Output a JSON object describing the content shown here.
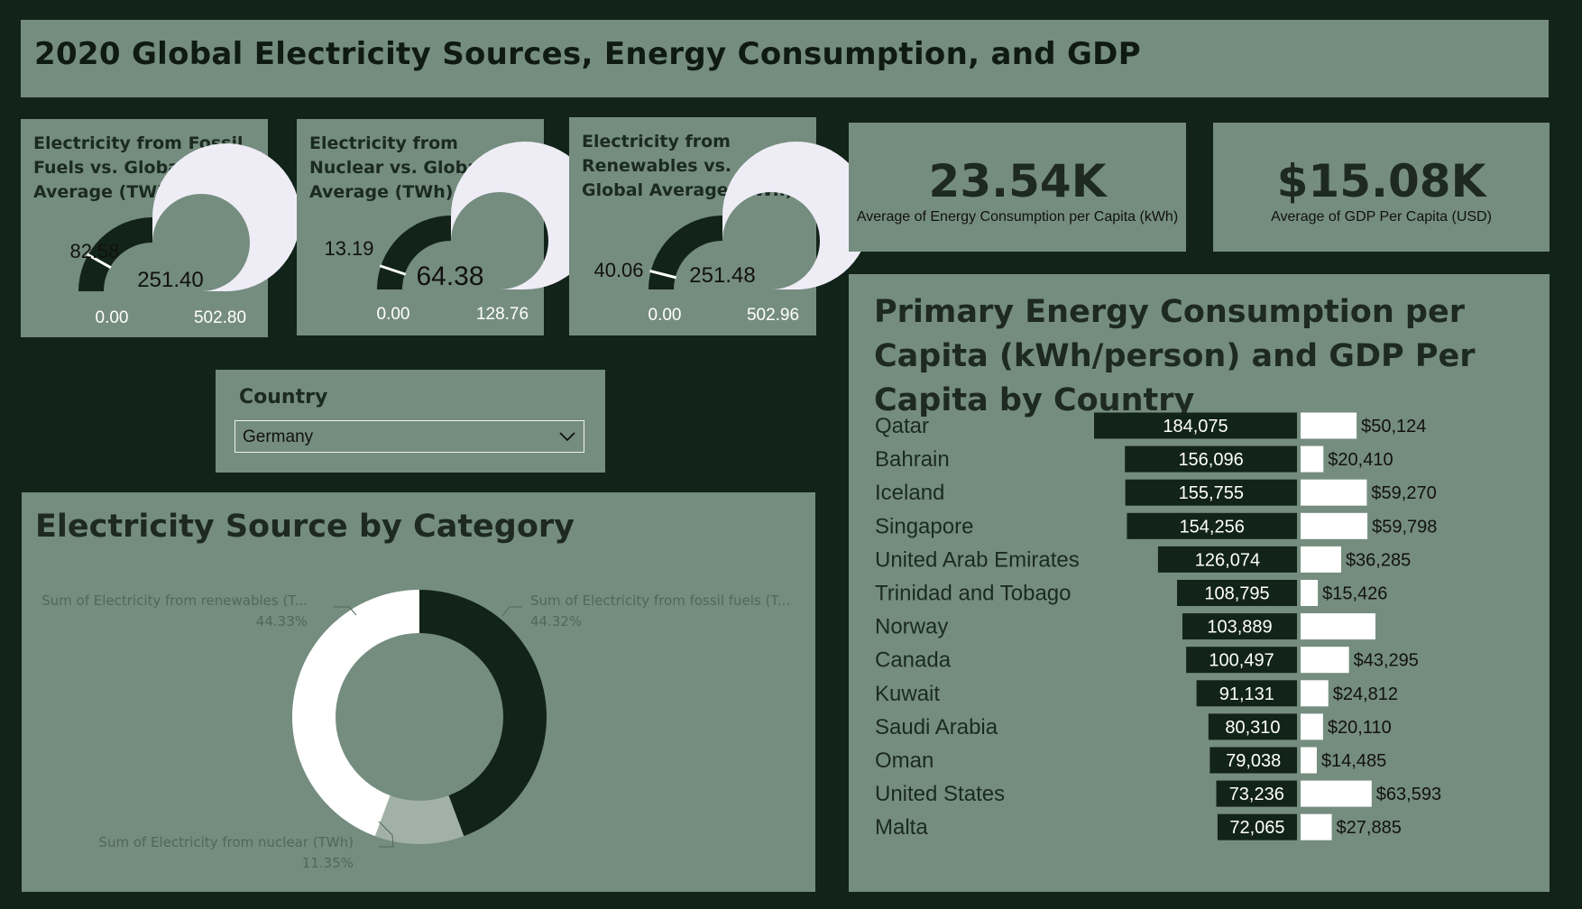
{
  "header": {
    "title": "2020 Global Electricity Sources, Energy Consumption, and GDP"
  },
  "gauges": [
    {
      "title": "Electricity from Fossil Fuels vs. Global Average (TWh)",
      "value": 82.58,
      "value_label": "82.58",
      "target_label": "251.40",
      "min_label": "0.00",
      "max_label": "502.80",
      "max": 502.8,
      "colors": {
        "fill": "#12231a",
        "track": "#eeedf6",
        "marker": "#ffffff"
      }
    },
    {
      "title": "Electricity from Nuclear vs. Global Average (TWh)",
      "value": 13.19,
      "value_label": "13.19",
      "target_label": "64.38",
      "min_label": "0.00",
      "max_label": "128.76",
      "max": 128.76,
      "colors": {
        "fill": "#12231a",
        "track": "#eeedf6",
        "marker": "#ffffff"
      }
    },
    {
      "title": "Electricity from Renewables vs. Global Average (TWh)",
      "value": 40.06,
      "value_label": "40.06",
      "target_label": "251.48",
      "min_label": "0.00",
      "max_label": "502.96",
      "max": 502.96,
      "colors": {
        "fill": "#12231a",
        "track": "#eeedf6",
        "marker": "#ffffff"
      }
    }
  ],
  "kpis": [
    {
      "value": "23.54K",
      "label": "Average of Energy Consumption per Capita (kWh)"
    },
    {
      "value": "$15.08K",
      "label": "Average of GDP Per Capita (USD)"
    }
  ],
  "slicer": {
    "title": "Country",
    "selected": "Germany"
  },
  "chart_data": [
    {
      "type": "pie",
      "title": "Electricity Source by Category",
      "slices": [
        {
          "label": "Sum of Electricity from fossil fuels (T...",
          "value": 44.32,
          "value_label": "44.32%",
          "color": "#12231a"
        },
        {
          "label": "Sum of Electricity from nuclear (TWh)",
          "value": 11.35,
          "value_label": "11.35%",
          "color": "#a2b1a8"
        },
        {
          "label": "Sum of Electricity from renewables (T...",
          "value": 44.33,
          "value_label": "44.33%",
          "color": "#ffffff"
        }
      ]
    },
    {
      "type": "bar",
      "title": "Primary Energy Consumption per Capita (kWh/person) and GDP Per Capita by Country",
      "categories": [
        "Qatar",
        "Bahrain",
        "Iceland",
        "Singapore",
        "United Arab Emirates",
        "Trinidad and Tobago",
        "Norway",
        "Canada",
        "Kuwait",
        "Saudi Arabia",
        "Oman",
        "United States",
        "Malta"
      ],
      "series": [
        {
          "values": [
            184075,
            156096,
            155755,
            154256,
            126074,
            108795,
            103889,
            100497,
            91131,
            80310,
            79038,
            73236,
            72065
          ],
          "labels": [
            "184,075",
            "156,096",
            "155,755",
            "154,256",
            "126,074",
            "108,795",
            "103,889",
            "100,497",
            "91,131",
            "80,310",
            "79,038",
            "73,236",
            "72,065"
          ],
          "color": "#12231a"
        },
        {
          "values": [
            50124,
            20410,
            59270,
            59798,
            36285,
            15426,
            67000,
            43295,
            24812,
            20110,
            14485,
            63593,
            27885
          ],
          "labels": [
            "$50,124",
            "$20,410",
            "$59,270",
            "$59,798",
            "$36,285",
            "$15,426",
            "",
            "$43,295",
            "$24,812",
            "$20,110",
            "$14,485",
            "$63,593",
            "$27,885"
          ],
          "color": "#ffffff"
        }
      ]
    }
  ]
}
